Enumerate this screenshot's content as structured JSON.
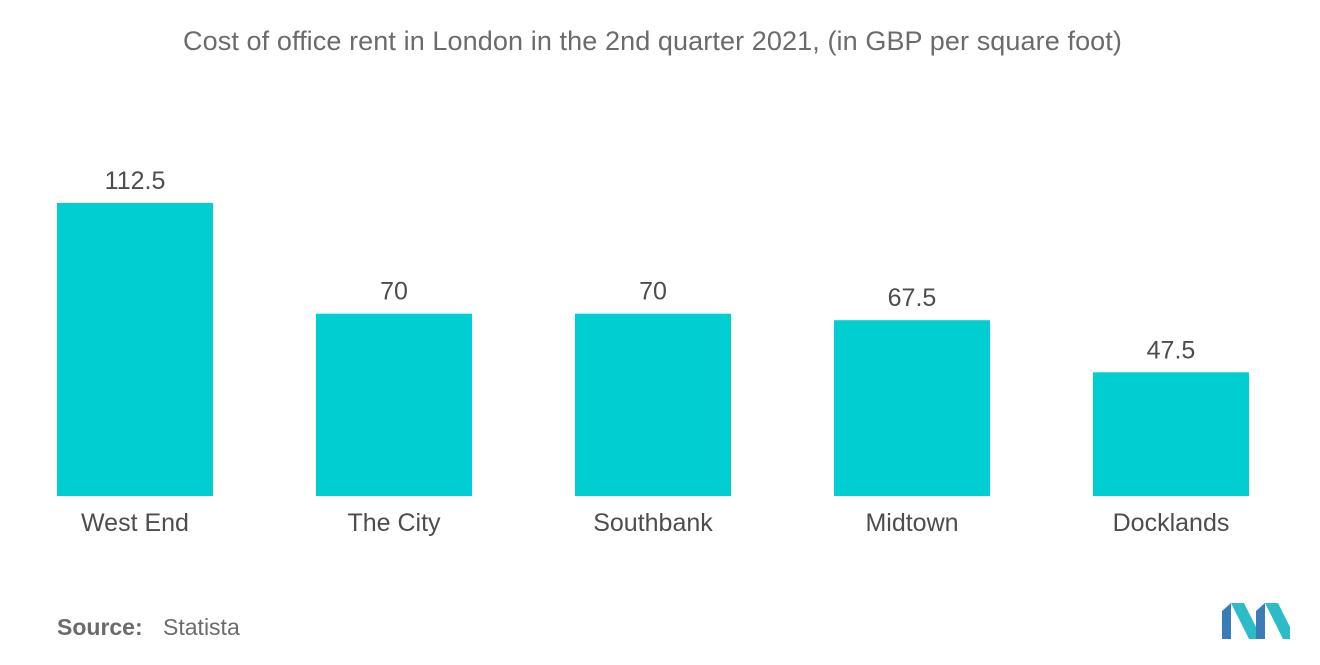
{
  "chart_data": {
    "type": "bar",
    "title": "Cost of office rent in London in the 2nd quarter 2021, (in GBP per square foot)",
    "categories": [
      "West End",
      "The City",
      "Southbank",
      "Midtown",
      "Docklands"
    ],
    "values": [
      112.5,
      70,
      70,
      67.5,
      47.5
    ],
    "value_labels": [
      "112.5",
      "70",
      "70",
      "67.5",
      "47.5"
    ],
    "xlabel": "",
    "ylabel": "",
    "ylim": [
      0,
      112.5
    ],
    "grid": false,
    "legend": "none",
    "bar_color": "#00ced1"
  },
  "source": {
    "key": "Source:",
    "value": "Statista"
  },
  "logo": {
    "icon": "mordor-intelligence-logo-icon",
    "colors": [
      "#3a7cb8",
      "#2bbcc8"
    ]
  }
}
